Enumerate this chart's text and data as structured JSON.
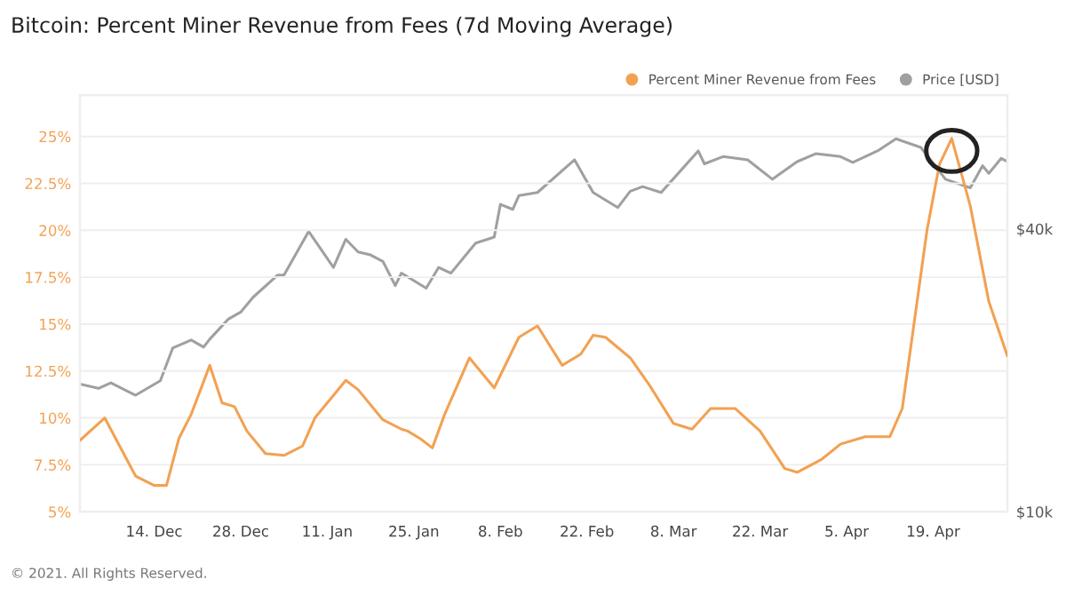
{
  "chart_data": {
    "type": "line",
    "title": "Bitcoin: Percent Miner Revenue from Fees (7d Moving Average)",
    "series": [
      {
        "name": "Percent Miner Revenue from Fees",
        "color": "#f2a152",
        "x": [
          "2020-12-02",
          "2020-12-06",
          "2020-12-11",
          "2020-12-14",
          "2020-12-16",
          "2020-12-18",
          "2020-12-20",
          "2020-12-23",
          "2020-12-25",
          "2020-12-27",
          "2020-12-29",
          "2021-01-01",
          "2021-01-04",
          "2021-01-07",
          "2021-01-09",
          "2021-01-12",
          "2021-01-14",
          "2021-01-16",
          "2021-01-20",
          "2021-01-23",
          "2021-01-24",
          "2021-01-26",
          "2021-01-28",
          "2021-01-30",
          "2021-02-03",
          "2021-02-07",
          "2021-02-11",
          "2021-02-14",
          "2021-02-18",
          "2021-02-21",
          "2021-02-23",
          "2021-02-25",
          "2021-03-01",
          "2021-03-04",
          "2021-03-08",
          "2021-03-11",
          "2021-03-14",
          "2021-03-18",
          "2021-03-22",
          "2021-03-26",
          "2021-03-28",
          "2021-04-01",
          "2021-04-04",
          "2021-04-08",
          "2021-04-12",
          "2021-04-14",
          "2021-04-18",
          "2021-04-20",
          "2021-04-22",
          "2021-04-25",
          "2021-04-28",
          "2021-05-01"
        ],
        "values": [
          8.8,
          10.0,
          6.9,
          6.4,
          6.4,
          8.9,
          10.2,
          12.8,
          10.8,
          10.6,
          9.3,
          8.1,
          8.0,
          8.5,
          10.0,
          11.2,
          12.0,
          11.5,
          9.9,
          9.4,
          9.3,
          8.9,
          8.4,
          10.2,
          13.2,
          11.6,
          14.3,
          14.9,
          12.8,
          13.4,
          14.4,
          14.3,
          13.2,
          11.8,
          9.7,
          9.4,
          10.5,
          10.5,
          9.3,
          7.3,
          7.1,
          7.8,
          8.6,
          9.0,
          9.0,
          10.5,
          20.0,
          23.5,
          24.9,
          21.3,
          16.2,
          13.3
        ]
      },
      {
        "name": "Price [USD]",
        "color": "#a0a0a0",
        "axis": "y2",
        "x": [
          "2020-12-02",
          "2020-12-05",
          "2020-12-07",
          "2020-12-11",
          "2020-12-15",
          "2020-12-17",
          "2020-12-20",
          "2020-12-22",
          "2020-12-23",
          "2020-12-26",
          "2020-12-28",
          "2020-12-30",
          "2021-01-03",
          "2021-01-04",
          "2021-01-08",
          "2021-01-12",
          "2021-01-14",
          "2021-01-16",
          "2021-01-18",
          "2021-01-20",
          "2021-01-22",
          "2021-01-23",
          "2021-01-27",
          "2021-01-29",
          "2021-01-31",
          "2021-02-04",
          "2021-02-07",
          "2021-02-08",
          "2021-02-10",
          "2021-02-11",
          "2021-02-14",
          "2021-02-20",
          "2021-02-23",
          "2021-02-27",
          "2021-03-01",
          "2021-03-03",
          "2021-03-06",
          "2021-03-12",
          "2021-03-13",
          "2021-03-16",
          "2021-03-20",
          "2021-03-24",
          "2021-03-28",
          "2021-03-31",
          "2021-04-04",
          "2021-04-06",
          "2021-04-10",
          "2021-04-13",
          "2021-04-17",
          "2021-04-21",
          "2021-04-25",
          "2021-04-27",
          "2021-04-28",
          "2021-04-30",
          "2021-05-01"
        ],
        "values": [
          18700,
          18300,
          18800,
          17700,
          19000,
          22300,
          23200,
          22400,
          23300,
          25700,
          26600,
          28600,
          31900,
          31900,
          39500,
          33100,
          38000,
          35700,
          35200,
          34100,
          30300,
          32200,
          29900,
          33100,
          32200,
          37300,
          38400,
          45100,
          44000,
          47100,
          47800,
          56100,
          47800,
          44400,
          48100,
          49200,
          47800,
          58600,
          55000,
          57000,
          56100,
          51000,
          55600,
          57800,
          57000,
          55400,
          58600,
          62200,
          59600,
          51000,
          48900,
          54500,
          52500,
          56500,
          55600
        ]
      }
    ],
    "xlim": [
      "2020-12-02",
      "2021-05-01"
    ],
    "xticks": [
      {
        "value": "2020-12-14",
        "label": "14. Dec"
      },
      {
        "value": "2020-12-28",
        "label": "28. Dec"
      },
      {
        "value": "2021-01-11",
        "label": "11. Jan"
      },
      {
        "value": "2021-01-25",
        "label": "25. Jan"
      },
      {
        "value": "2021-02-08",
        "label": "8. Feb"
      },
      {
        "value": "2021-02-22",
        "label": "22. Feb"
      },
      {
        "value": "2021-03-08",
        "label": "8. Mar"
      },
      {
        "value": "2021-03-22",
        "label": "22. Mar"
      },
      {
        "value": "2021-04-05",
        "label": "5. Apr"
      },
      {
        "value": "2021-04-19",
        "label": "19. Apr"
      }
    ],
    "ylim": [
      5,
      27.2
    ],
    "yticks": [
      {
        "value": 5,
        "label": "5%"
      },
      {
        "value": 7.5,
        "label": "7.5%"
      },
      {
        "value": 10,
        "label": "10%"
      },
      {
        "value": 12.5,
        "label": "12.5%"
      },
      {
        "value": 15,
        "label": "15%"
      },
      {
        "value": 17.5,
        "label": "17.5%"
      },
      {
        "value": 20,
        "label": "20%"
      },
      {
        "value": 22.5,
        "label": "22.5%"
      },
      {
        "value": 25,
        "label": "25%"
      }
    ],
    "y2lim": [
      10000,
      77000
    ],
    "y2ticks": [
      {
        "value": 10000,
        "label": "$10k"
      },
      {
        "value": 40000,
        "label": "$40k"
      }
    ],
    "log": "y2",
    "grid": "y",
    "legend": "top right",
    "marker": "none",
    "line_style": "solid",
    "annotations": [
      "© 2021. All Rights Reserved."
    ]
  }
}
